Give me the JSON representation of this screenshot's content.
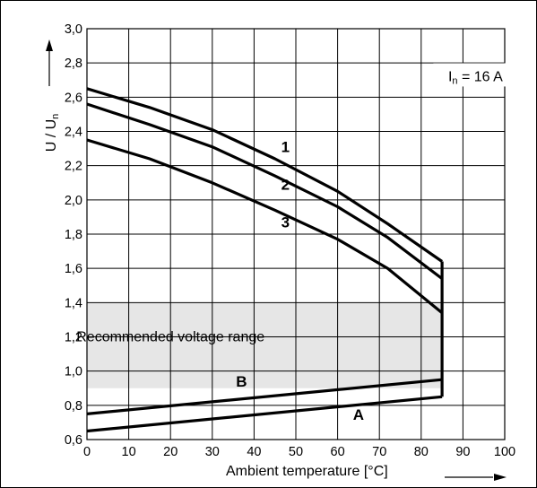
{
  "chart_data": {
    "type": "line",
    "xlabel": "Ambient temperature [°C]",
    "ylabel_main": "U / U",
    "ylabel_sub": "n",
    "xlim": [
      0,
      100
    ],
    "ylim": [
      0.6,
      3.0
    ],
    "xticks": [
      0,
      10,
      20,
      30,
      40,
      50,
      60,
      70,
      80,
      90,
      100
    ],
    "xtick_labels": [
      "0",
      "10",
      "20",
      "30",
      "40",
      "50",
      "60",
      "70",
      "80",
      "90",
      "100"
    ],
    "yticks": [
      0.6,
      0.8,
      1.0,
      1.2,
      1.4,
      1.6,
      1.8,
      2.0,
      2.2,
      2.4,
      2.6,
      2.8,
      3.0
    ],
    "ytick_labels": [
      "0,6",
      "0,8",
      "1,0",
      "1,2",
      "1,4",
      "1,6",
      "1,8",
      "2,0",
      "2,2",
      "2,4",
      "2,6",
      "2,8",
      "3,0"
    ],
    "grid": true,
    "annotation": {
      "main": "I",
      "sub": "n",
      "rest": " = 16 A",
      "x": 93,
      "y": 2.72
    },
    "band": {
      "label": "Recommended voltage range",
      "x": [
        0,
        85
      ],
      "y": [
        0.9,
        1.4
      ],
      "label_x": 20,
      "label_y": 1.2,
      "color": "#e6e6e6"
    },
    "series": [
      {
        "name": "1",
        "label_x": 47.5,
        "label_y": 2.28,
        "points": [
          [
            0,
            2.65
          ],
          [
            15,
            2.54
          ],
          [
            30,
            2.41
          ],
          [
            45,
            2.24
          ],
          [
            60,
            2.05
          ],
          [
            72,
            1.86
          ],
          [
            85,
            1.64
          ]
        ]
      },
      {
        "name": "2",
        "label_x": 47.5,
        "label_y": 2.06,
        "points": [
          [
            0,
            2.56
          ],
          [
            15,
            2.44
          ],
          [
            30,
            2.31
          ],
          [
            45,
            2.14
          ],
          [
            60,
            1.96
          ],
          [
            72,
            1.78
          ],
          [
            85,
            1.54
          ]
        ]
      },
      {
        "name": "3",
        "label_x": 47.5,
        "label_y": 1.84,
        "points": [
          [
            0,
            2.35
          ],
          [
            15,
            2.24
          ],
          [
            30,
            2.1
          ],
          [
            45,
            1.94
          ],
          [
            60,
            1.77
          ],
          [
            72,
            1.6
          ],
          [
            85,
            1.34
          ]
        ]
      },
      {
        "name": "B",
        "label_x": 37,
        "label_y": 0.91,
        "points": [
          [
            0,
            0.75
          ],
          [
            85,
            0.95
          ]
        ]
      },
      {
        "name": "A",
        "label_x": 65,
        "label_y": 0.715,
        "points": [
          [
            0,
            0.65
          ],
          [
            85,
            0.85
          ]
        ]
      }
    ],
    "boundary": {
      "x": 85,
      "y": [
        0.85,
        1.64
      ]
    }
  }
}
